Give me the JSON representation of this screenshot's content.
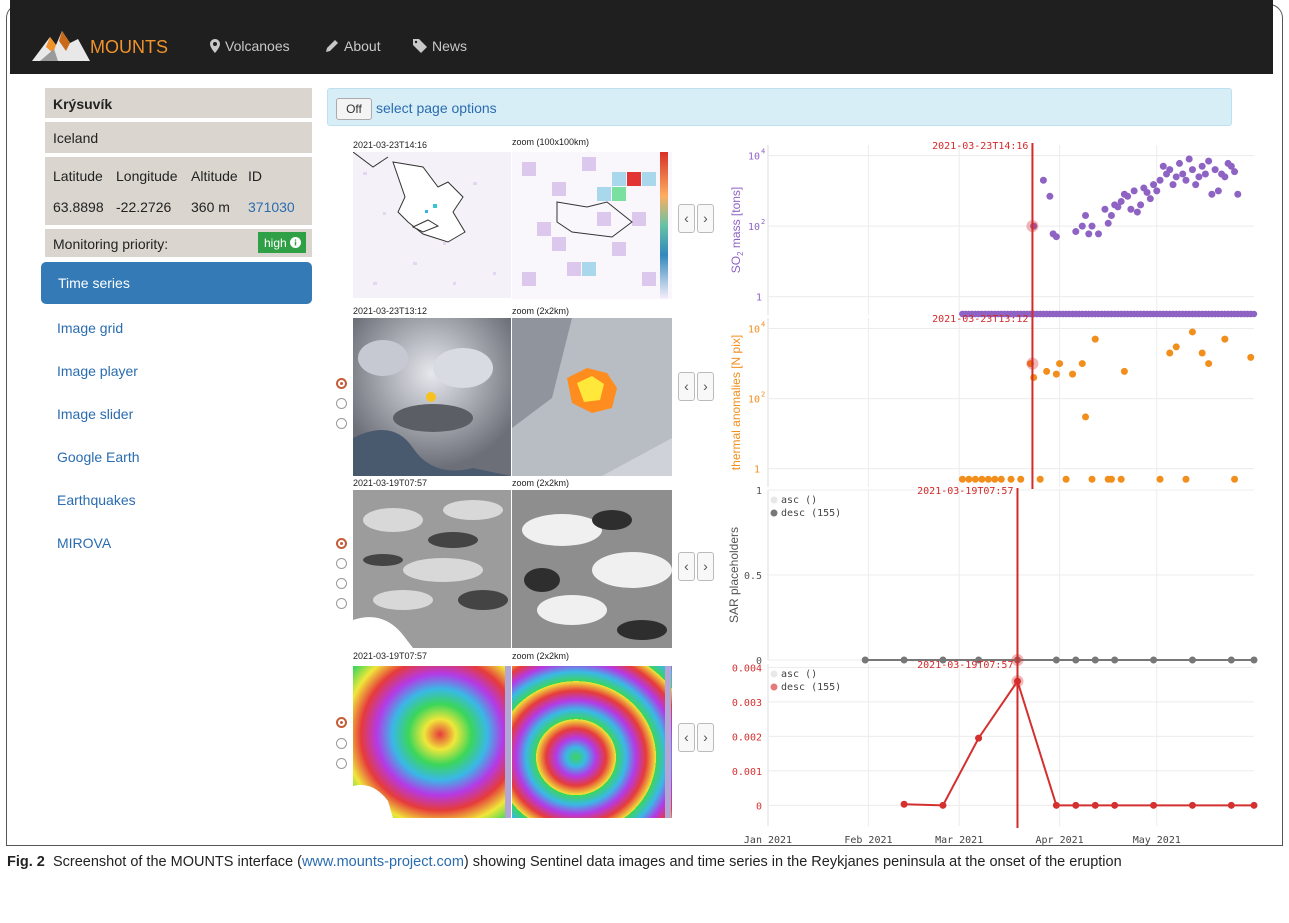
{
  "nav": {
    "brand": "MOUNTS",
    "items": [
      {
        "label": "Volcanoes",
        "icon": "map-marker-icon"
      },
      {
        "label": "About",
        "icon": "pencil-icon"
      },
      {
        "label": "News",
        "icon": "tag-icon"
      }
    ]
  },
  "sidebar": {
    "volcano_name": "Krýsuvík",
    "country": "Iceland",
    "headers": [
      "Latitude",
      "Longitude",
      "Altitude",
      "ID"
    ],
    "values": [
      "63.8898",
      "-22.2726",
      "360 m",
      "371030"
    ],
    "priority_label": "Monitoring priority:",
    "priority_value": "high",
    "menu": [
      "Time series",
      "Image grid",
      "Image player",
      "Image slider",
      "Google Earth",
      "Earthquakes",
      "MIROVA"
    ]
  },
  "options": {
    "toggle": "Off",
    "text": "select page options"
  },
  "image_rows": [
    {
      "date": "2021-03-23T14:16",
      "zoom": "zoom (100x100km)"
    },
    {
      "date": "2021-03-23T13:12",
      "zoom": "zoom (2x2km)"
    },
    {
      "date": "2021-03-19T07:57",
      "zoom": "zoom (2x2km)"
    },
    {
      "date": "2021-03-19T07:57",
      "zoom": "zoom (2x2km)"
    }
  ],
  "colors": {
    "navbar": "#1f1f1f",
    "brand": "#f0932b",
    "so2": "#8e63c4",
    "thermal": "#f28e1c",
    "sar": "#777777",
    "insar": "#d43030",
    "marker": "#d42a2a",
    "link": "#2a6cb0"
  },
  "chart_data": [
    {
      "type": "scatter",
      "ylabel_main": "SO",
      "ylabel_sub": "2",
      "ylabel_rest": " mass [tons]",
      "yscale": "log",
      "ylim": [
        0.3,
        20000
      ],
      "yticks": [
        {
          "v": 1,
          "base": "1",
          "exp": ""
        },
        {
          "v": 100,
          "base": "10",
          "exp": "2"
        },
        {
          "v": 10000,
          "base": "10",
          "exp": "4"
        }
      ],
      "marker_date": "2021-03-23T14:16",
      "x": [
        "2021-03-24",
        "2021-03-27",
        "2021-03-29",
        "2021-03-30",
        "2021-03-31",
        "2021-04-06",
        "2021-04-08",
        "2021-04-09",
        "2021-04-10",
        "2021-04-11",
        "2021-04-13",
        "2021-04-15",
        "2021-04-16",
        "2021-04-17",
        "2021-04-18",
        "2021-04-19",
        "2021-04-20",
        "2021-04-21",
        "2021-04-22",
        "2021-04-23",
        "2021-04-24",
        "2021-04-25",
        "2021-04-26",
        "2021-04-27",
        "2021-04-28",
        "2021-04-29",
        "2021-04-30",
        "2021-05-01",
        "2021-05-02",
        "2021-05-03",
        "2021-05-04",
        "2021-05-05",
        "2021-05-06",
        "2021-05-07",
        "2021-05-08",
        "2021-05-09",
        "2021-05-10",
        "2021-05-11",
        "2021-05-12",
        "2021-05-13",
        "2021-05-14",
        "2021-05-15",
        "2021-05-16",
        "2021-05-17",
        "2021-05-18",
        "2021-05-19",
        "2021-05-20",
        "2021-05-21",
        "2021-05-22",
        "2021-05-23",
        "2021-05-24",
        "2021-05-25",
        "2021-05-26"
      ],
      "y": [
        100,
        2000,
        700,
        60,
        50,
        70,
        100,
        200,
        60,
        100,
        60,
        300,
        120,
        200,
        400,
        350,
        500,
        800,
        700,
        300,
        1000,
        250,
        400,
        1200,
        900,
        600,
        1500,
        1000,
        2000,
        5000,
        3000,
        4000,
        1500,
        2500,
        6000,
        3000,
        2000,
        8000,
        4000,
        1500,
        2500,
        5000,
        3000,
        7000,
        800,
        4000,
        1000,
        3000,
        2500,
        6000,
        5000,
        3500,
        800
      ],
      "dense_from": "2021-03-02",
      "dense_to": "2021-05-31",
      "dense_value": 0.32
    },
    {
      "type": "scatter",
      "ylabel": "thermal anomalies [N pix]",
      "yscale": "log",
      "ylim": [
        0.3,
        20000
      ],
      "yticks": [
        {
          "v": 1,
          "base": "1",
          "exp": ""
        },
        {
          "v": 100,
          "base": "10",
          "exp": "2"
        },
        {
          "v": 10000,
          "base": "10",
          "exp": "4"
        }
      ],
      "marker_date": "2021-03-23T13:12",
      "x": [
        "2021-03-02",
        "2021-03-04",
        "2021-03-06",
        "2021-03-08",
        "2021-03-10",
        "2021-03-12",
        "2021-03-14",
        "2021-03-17",
        "2021-03-20",
        "2021-03-23",
        "2021-03-24",
        "2021-03-26",
        "2021-03-28",
        "2021-03-31",
        "2021-04-01",
        "2021-04-03",
        "2021-04-05",
        "2021-04-08",
        "2021-04-09",
        "2021-04-11",
        "2021-04-12",
        "2021-04-16",
        "2021-04-17",
        "2021-04-20",
        "2021-04-21",
        "2021-05-02",
        "2021-05-05",
        "2021-05-07",
        "2021-05-10",
        "2021-05-12",
        "2021-05-15",
        "2021-05-17",
        "2021-05-22",
        "2021-05-25",
        "2021-05-30"
      ],
      "y": [
        0.5,
        0.5,
        0.5,
        0.5,
        0.5,
        0.5,
        0.5,
        0.5,
        0.5,
        1000,
        400,
        0.5,
        600,
        500,
        1000,
        0.5,
        500,
        1000,
        30,
        0.5,
        5000,
        0.5,
        0.5,
        0.5,
        600,
        0.5,
        2000,
        3000,
        0.5,
        8000,
        2000,
        1000,
        5000,
        0.5,
        1500
      ]
    },
    {
      "type": "line",
      "ylabel": "SAR placeholders",
      "ylim": [
        0,
        1
      ],
      "yticks": [
        {
          "v": 0,
          "label": "0"
        },
        {
          "v": 0.5,
          "label": "0.5"
        },
        {
          "v": 1,
          "label": "1"
        }
      ],
      "marker_date": "2021-03-19T07:57",
      "legend": [
        "asc ()",
        "desc (155)"
      ],
      "x": [
        "2021-01-31",
        "2021-02-12",
        "2021-02-24",
        "2021-03-07",
        "2021-03-19",
        "2021-03-31",
        "2021-04-06",
        "2021-04-12",
        "2021-04-18",
        "2021-04-30",
        "2021-05-12",
        "2021-05-24",
        "2021-05-31"
      ],
      "y": [
        0,
        0,
        0,
        0,
        0,
        0,
        0,
        0,
        0,
        0,
        0,
        0,
        0
      ]
    },
    {
      "type": "line",
      "ylim": [
        -0.0006,
        0.0041
      ],
      "yticks": [
        {
          "v": 0,
          "label": "0"
        },
        {
          "v": 0.001,
          "label": "0.001"
        },
        {
          "v": 0.002,
          "label": "0.002"
        },
        {
          "v": 0.003,
          "label": "0.003"
        },
        {
          "v": 0.004,
          "label": "0.004"
        }
      ],
      "marker_date": "2021-03-19T07:57",
      "legend": [
        "asc ()",
        "desc (155)"
      ],
      "x": [
        "2021-02-12",
        "2021-02-24",
        "2021-03-07",
        "2021-03-19",
        "2021-03-31",
        "2021-04-06",
        "2021-04-12",
        "2021-04-18",
        "2021-04-30",
        "2021-05-12",
        "2021-05-24",
        "2021-05-31"
      ],
      "y": [
        3e-05,
        0,
        0.00195,
        0.0036,
        0,
        0,
        0,
        0,
        0,
        0,
        0,
        0
      ],
      "xticks": [
        {
          "date": "2021-01-01",
          "label": "Jan 2021"
        },
        {
          "date": "2021-02-01",
          "label": "Feb 2021"
        },
        {
          "date": "2021-03-01",
          "label": "Mar 2021"
        },
        {
          "date": "2021-04-01",
          "label": "Apr 2021"
        },
        {
          "date": "2021-05-01",
          "label": "May 2021"
        }
      ]
    }
  ],
  "caption": {
    "fig": "Fig. 2",
    "before": "Screenshot of the MOUNTS interface (",
    "link": "www.mounts-project.com",
    "after": ") showing Sentinel data images and time series in the Reykjanes peninsula at the onset of the eruption"
  }
}
